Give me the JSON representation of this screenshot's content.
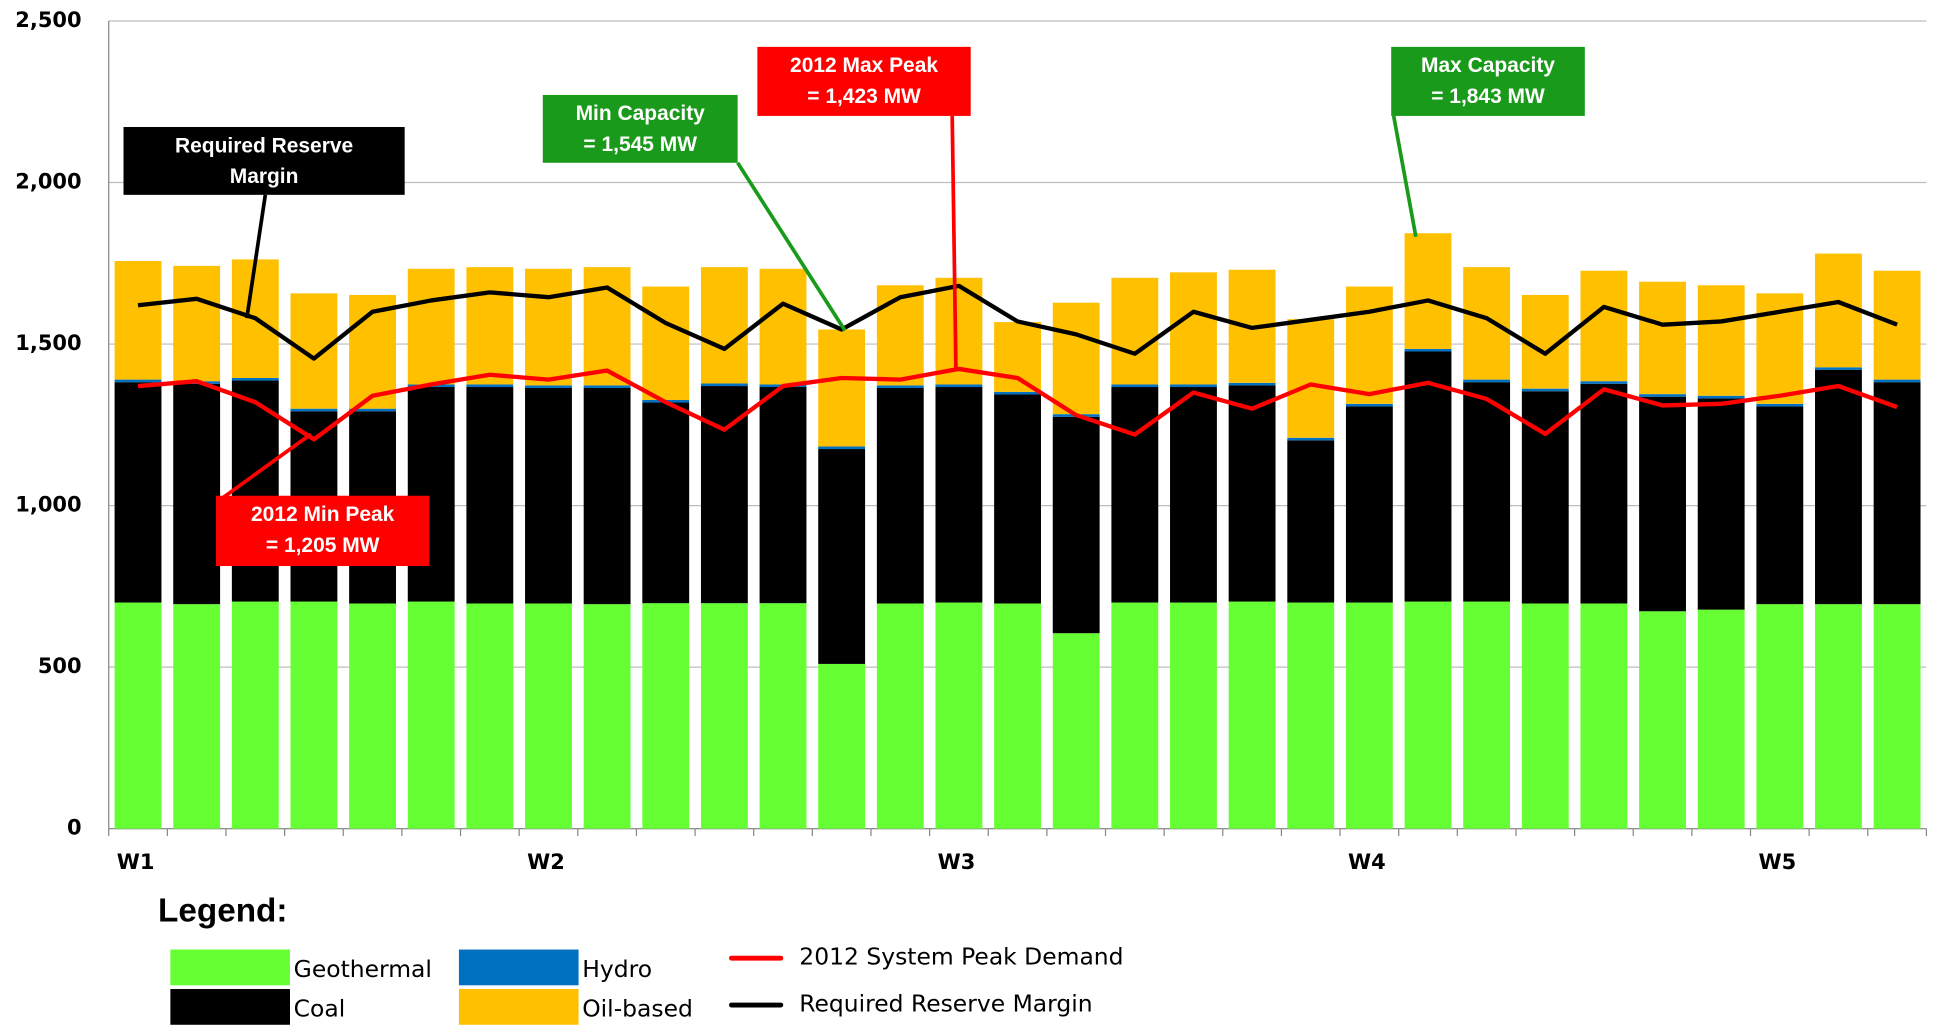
{
  "chart_data": {
    "type": "stacked_bar_line",
    "categories": [
      "W1",
      null,
      null,
      null,
      null,
      null,
      null,
      "W2",
      null,
      null,
      null,
      null,
      null,
      null,
      "W3",
      null,
      null,
      null,
      null,
      null,
      null,
      "W4",
      null,
      null,
      null,
      null,
      null,
      null,
      "W5",
      null,
      null
    ],
    "series": [
      {
        "name": "Geothermal",
        "kind": "bar",
        "color": "#66ff33",
        "values": [
          700,
          695,
          703,
          703,
          697,
          703,
          697,
          697,
          695,
          698,
          698,
          698,
          510,
          697,
          700,
          697,
          605,
          700,
          700,
          703,
          700,
          700,
          703,
          703,
          697,
          697,
          673,
          678,
          695,
          695,
          695
        ]
      },
      {
        "name": "Coal",
        "kind": "bar",
        "color": "#000000",
        "values": [
          682,
          682,
          684,
          589,
          595,
          664,
          670,
          667,
          669,
          621,
          672,
          669,
          665,
          667,
          667,
          647,
          670,
          667,
          667,
          669,
          502,
          607,
          774,
          679,
          657,
          680,
          664,
          654,
          612,
          725,
          687
        ]
      },
      {
        "name": "Hydro",
        "kind": "bar",
        "color": "#0070c0",
        "values": [
          8,
          8,
          8,
          8,
          8,
          8,
          8,
          8,
          8,
          8,
          8,
          8,
          8,
          8,
          8,
          8,
          8,
          8,
          8,
          8,
          8,
          8,
          8,
          8,
          8,
          8,
          8,
          8,
          8,
          8,
          8
        ]
      },
      {
        "name": "Oil-based",
        "kind": "bar",
        "color": "#ffc000",
        "values": [
          367,
          357,
          367,
          357,
          352,
          358,
          363,
          361,
          366,
          351,
          360,
          358,
          362,
          310,
          330,
          216,
          345,
          330,
          347,
          350,
          367,
          363,
          358,
          348,
          290,
          342,
          348,
          342,
          342,
          352,
          337
        ]
      },
      {
        "name": "2012 System Peak Demand",
        "kind": "line",
        "color": "#ff0000",
        "values": [
          1370,
          1385,
          1320,
          1205,
          1340,
          1375,
          1405,
          1390,
          1418,
          1320,
          1235,
          1370,
          1395,
          1390,
          1423,
          1395,
          1280,
          1220,
          1350,
          1300,
          1375,
          1345,
          1380,
          1330,
          1222,
          1360,
          1310,
          1315,
          1340,
          1370,
          1305
        ]
      },
      {
        "name": "Required Reserve Margin",
        "kind": "line",
        "color": "#000000",
        "values": [
          1620,
          1640,
          1580,
          1455,
          1600,
          1635,
          1660,
          1645,
          1675,
          1565,
          1485,
          1625,
          1545,
          1645,
          1680,
          1570,
          1530,
          1470,
          1600,
          1550,
          1575,
          1600,
          1635,
          1580,
          1470,
          1615,
          1560,
          1570,
          1600,
          1630,
          1560
        ]
      }
    ],
    "ylim": [
      0,
      2500
    ],
    "yticks": [
      0,
      500,
      {
        "value": 1000,
        "label": "1,000"
      },
      {
        "value": 1500,
        "label": "1,500"
      },
      {
        "value": 2000,
        "label": "2,000"
      },
      {
        "value": 2500,
        "label": "2,500"
      }
    ],
    "grid": true,
    "legend_title": "Legend:",
    "annotations": [
      {
        "lines": [
          "Required Reserve",
          "Margin"
        ],
        "color": "#000000"
      },
      {
        "lines": [
          "Min Capacity",
          "= 1,545 MW"
        ],
        "color": "#1a9a1a"
      },
      {
        "lines": [
          "2012 Max Peak",
          "= 1,423 MW"
        ],
        "color": "#ff0000"
      },
      {
        "lines": [
          "Max Capacity",
          "= 1,843 MW"
        ],
        "color": "#1a9a1a"
      },
      {
        "lines": [
          "2012 Min Peak",
          "= 1,205 MW"
        ],
        "color": "#ff0000"
      }
    ]
  }
}
